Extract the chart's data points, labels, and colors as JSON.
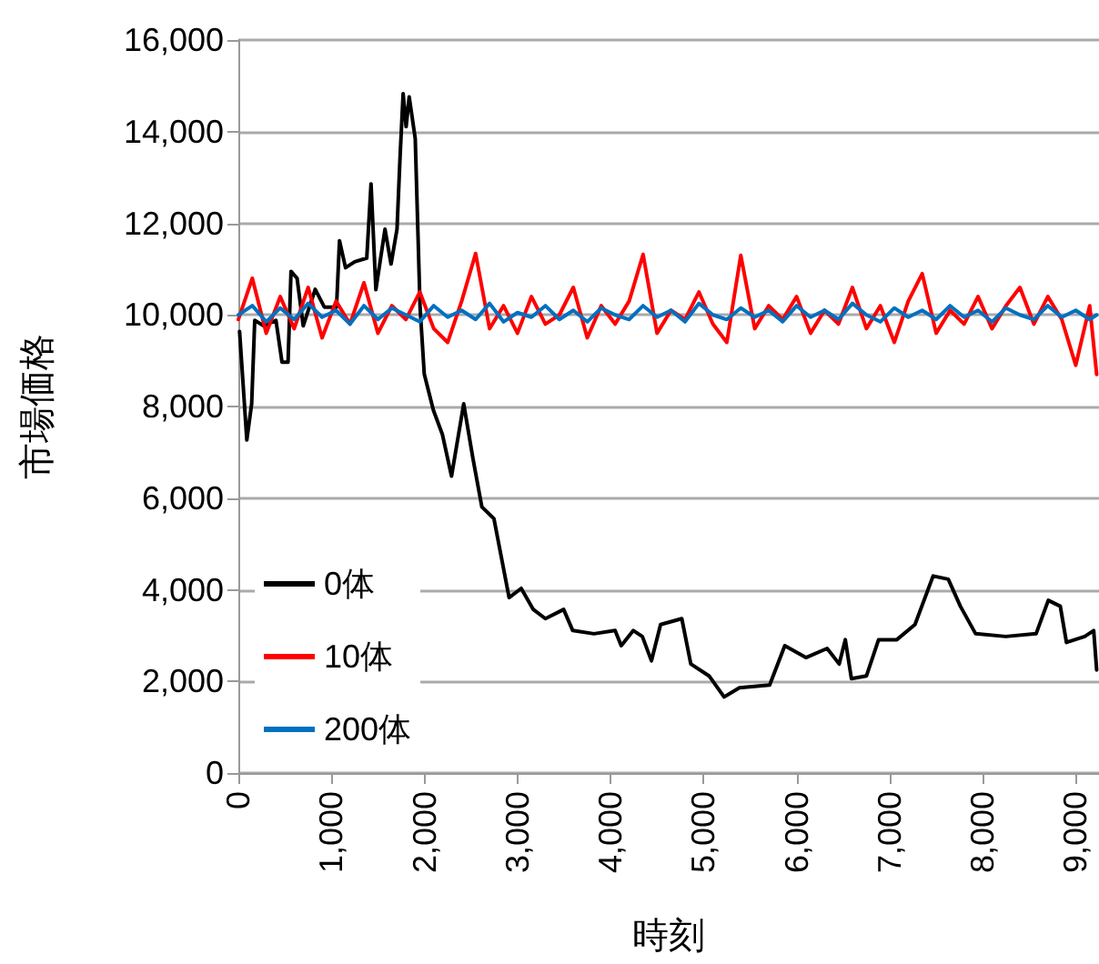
{
  "chart_data": {
    "type": "line",
    "xlabel": "時刻",
    "ylabel": "市場価格",
    "xlim": [
      0,
      9250
    ],
    "xticks": [
      0,
      {
        "value": 1000,
        "label": "1,000"
      },
      {
        "value": 2000,
        "label": "2,000"
      },
      {
        "value": 3000,
        "label": "3,000"
      },
      {
        "value": 4000,
        "label": "4,000"
      },
      {
        "value": 5000,
        "label": "5,000"
      },
      {
        "value": 6000,
        "label": "6,000"
      },
      {
        "value": 7000,
        "label": "7,000"
      },
      {
        "value": 8000,
        "label": "8,000"
      },
      {
        "value": 9000,
        "label": "9,000"
      }
    ],
    "ylim": [
      0,
      16000
    ],
    "yticks": [
      0,
      {
        "value": 2000,
        "label": "2,000"
      },
      {
        "value": 4000,
        "label": "4,000"
      },
      {
        "value": 6000,
        "label": "6,000"
      },
      {
        "value": 8000,
        "label": "8,000"
      },
      {
        "value": 10000,
        "label": "10,000"
      },
      {
        "value": 12000,
        "label": "12,000"
      },
      {
        "value": 14000,
        "label": "14,000"
      },
      {
        "value": 16000,
        "label": "16,000"
      }
    ],
    "grid": "y",
    "legend": "bottom left",
    "marker": "none",
    "line_style": "solid",
    "series": [
      {
        "name": "0体",
        "color": "#000000",
        "x": [
          13,
          91,
          143,
          176,
          273,
          404,
          469,
          534,
          566,
          631,
          697,
          826,
          924,
          1055,
          1087,
          1152,
          1250,
          1380,
          1426,
          1478,
          1576,
          1641,
          1705,
          1738,
          1771,
          1803,
          1836,
          1901,
          1953,
          1998,
          2096,
          2193,
          2291,
          2422,
          2520,
          2617,
          2747,
          2910,
          3040,
          3170,
          3300,
          3496,
          3594,
          3822,
          4049,
          4115,
          4245,
          4342,
          4440,
          4538,
          4766,
          4863,
          5059,
          5221,
          5385,
          5710,
          5873,
          6100,
          6328,
          6458,
          6523,
          6589,
          6751,
          6881,
          7077,
          7272,
          7467,
          7630,
          7760,
          7924,
          8248,
          8574,
          8705,
          8834,
          8900,
          9096,
          9193,
          9225
        ],
        "values": [
          9640,
          7270,
          8060,
          9880,
          9760,
          9880,
          8970,
          8970,
          10950,
          10800,
          9760,
          10560,
          10170,
          10170,
          11620,
          11030,
          11160,
          11240,
          12860,
          10550,
          11870,
          11110,
          11870,
          13450,
          14830,
          14110,
          14760,
          13850,
          10160,
          8710,
          7920,
          7390,
          6480,
          8060,
          6880,
          5810,
          5550,
          3830,
          4030,
          3570,
          3370,
          3570,
          3110,
          3040,
          3110,
          2780,
          3110,
          2980,
          2450,
          3240,
          3370,
          2380,
          2120,
          1660,
          1860,
          1920,
          2780,
          2520,
          2720,
          2380,
          2910,
          2060,
          2120,
          2910,
          2910,
          3240,
          4300,
          4230,
          3640,
          3040,
          2980,
          3040,
          3770,
          3640,
          2850,
          2980,
          3110,
          2250
        ]
      },
      {
        "name": "10体",
        "color": "#ff0000",
        "x": [
          0,
          150,
          300,
          450,
          600,
          750,
          900,
          1050,
          1200,
          1350,
          1500,
          1650,
          1800,
          1950,
          2100,
          2250,
          2400,
          2550,
          2700,
          2850,
          3000,
          3150,
          3300,
          3450,
          3600,
          3750,
          3900,
          4050,
          4200,
          4350,
          4500,
          4650,
          4800,
          4950,
          5100,
          5250,
          5400,
          5550,
          5700,
          5850,
          6000,
          6150,
          6300,
          6450,
          6600,
          6750,
          6900,
          7050,
          7200,
          7350,
          7500,
          7650,
          7800,
          7950,
          8100,
          8250,
          8400,
          8550,
          8700,
          8850,
          9000,
          9150,
          9225
        ],
        "values": [
          9900,
          10800,
          9600,
          10400,
          9700,
          10600,
          9500,
          10300,
          9800,
          10700,
          9600,
          10200,
          9900,
          10500,
          9700,
          9400,
          10300,
          11340,
          9700,
          10200,
          9600,
          10400,
          9800,
          10000,
          10600,
          9500,
          10200,
          9800,
          10300,
          11320,
          9600,
          10100,
          9900,
          10500,
          9800,
          9400,
          11300,
          9700,
          10200,
          9900,
          10400,
          9600,
          10100,
          9800,
          10600,
          9700,
          10200,
          9400,
          10300,
          10900,
          9600,
          10100,
          9800,
          10400,
          9700,
          10200,
          10600,
          9800,
          10400,
          9900,
          8900,
          10200,
          8700
        ]
      },
      {
        "name": "200体",
        "color": "#0070c0",
        "x": [
          0,
          150,
          300,
          450,
          600,
          750,
          900,
          1050,
          1200,
          1350,
          1500,
          1650,
          1800,
          1950,
          2100,
          2250,
          2400,
          2550,
          2700,
          2850,
          3000,
          3150,
          3300,
          3450,
          3600,
          3750,
          3900,
          4050,
          4200,
          4350,
          4500,
          4650,
          4800,
          4950,
          5100,
          5250,
          5400,
          5550,
          5700,
          5850,
          6000,
          6150,
          6300,
          6450,
          6600,
          6750,
          6900,
          7050,
          7200,
          7350,
          7500,
          7650,
          7800,
          7950,
          8100,
          8250,
          8400,
          8550,
          8700,
          8850,
          9000,
          9150,
          9225
        ],
        "values": [
          10000,
          10200,
          9850,
          10150,
          9900,
          10250,
          9950,
          10100,
          9800,
          10200,
          9900,
          10150,
          10000,
          9850,
          10200,
          9950,
          10100,
          9900,
          10250,
          9850,
          10050,
          9950,
          10200,
          9900,
          10100,
          9850,
          10150,
          10000,
          9900,
          10200,
          9950,
          10100,
          9850,
          10250,
          10000,
          9900,
          10150,
          9950,
          10100,
          9850,
          10200,
          9950,
          10100,
          9900,
          10250,
          10000,
          9850,
          10150,
          9950,
          10100,
          9900,
          10200,
          9950,
          10100,
          9850,
          10150,
          10000,
          9900,
          10200,
          9950,
          10100,
          9900,
          10000
        ]
      }
    ]
  }
}
